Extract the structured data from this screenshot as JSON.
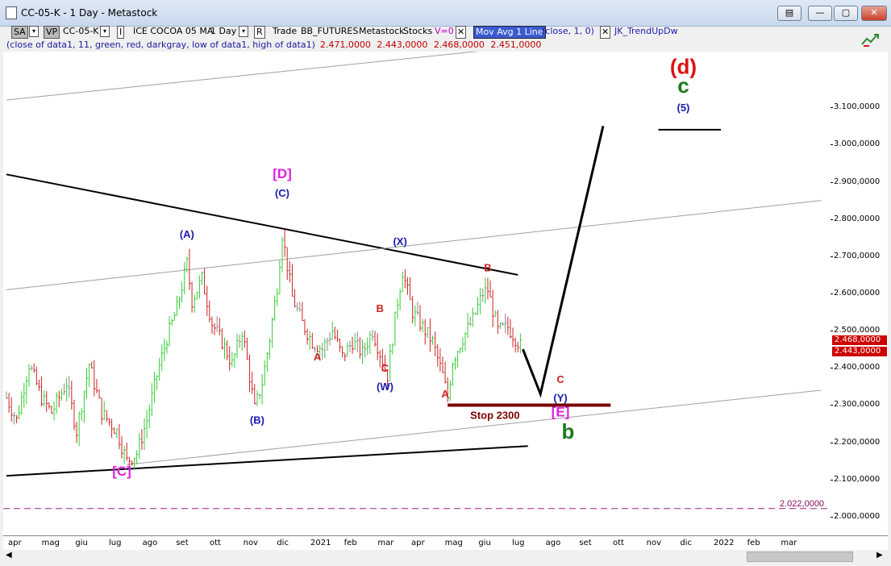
{
  "window": {
    "title": "CC-05-K - 1 Day - Metastock",
    "buttons": [
      "▤",
      "—",
      "▢",
      "✕"
    ]
  },
  "toolbar": {
    "sa": "SA",
    "vp": "VP",
    "symbol": "CC-05-K",
    "i_btn": "I",
    "desc": "ICE COCOA 05 MA",
    "interval": "1 Day",
    "r_btn": "R",
    "trade": "Trade",
    "source": "BB_FUTURES",
    "vendor": "Metastock",
    "stocks": "Stocks",
    "v0": "V=0",
    "x1": "✕",
    "ma": "Mov Avg 1 Line",
    "ma_params": "(close,  1,  0)",
    "x2": "✕",
    "trend": "JK_TrendUpDw"
  },
  "info": {
    "params": "(close of data1,  11,  green,  red,  darkgray,  low of data1,  high of data1)",
    "values": "2.471,0000 2.443,0000 2.468,0000 2.451,0000"
  },
  "chart_data": {
    "type": "candlestick",
    "title": "CC-05-K - 1 Day",
    "y_range": [
      1950,
      3250
    ],
    "y_ticks": [
      "3.100,0000",
      "3.000,0000",
      "2.900,0000",
      "2.800,0000",
      "2.700,0000",
      "2.600,0000",
      "2.500,0000",
      "2.400,0000",
      "2.300,0000",
      "2.200,0000",
      "2.100,0000",
      "2.000,0000"
    ],
    "x_ticks": [
      "apr",
      "mag",
      "giu",
      "lug",
      "ago",
      "set",
      "ott",
      "nov",
      "dic",
      "2021",
      "feb",
      "mar",
      "apr",
      "mag",
      "giu",
      "lug",
      "ago",
      "set",
      "ott",
      "nov",
      "dic",
      "2022",
      "feb",
      "mar"
    ],
    "last_prices": [
      "2.468,0000",
      "2.443,0000"
    ],
    "price_path": [
      [
        0,
        2320
      ],
      [
        4,
        2260
      ],
      [
        9,
        2410
      ],
      [
        14,
        2320
      ],
      [
        18,
        2280
      ],
      [
        24,
        2360
      ],
      [
        28,
        2230
      ],
      [
        33,
        2410
      ],
      [
        38,
        2280
      ],
      [
        44,
        2230
      ],
      [
        48,
        2150
      ],
      [
        52,
        2170
      ],
      [
        56,
        2260
      ],
      [
        60,
        2380
      ],
      [
        64,
        2480
      ],
      [
        68,
        2560
      ],
      [
        72,
        2680
      ],
      [
        74,
        2580
      ],
      [
        78,
        2640
      ],
      [
        82,
        2520
      ],
      [
        86,
        2470
      ],
      [
        90,
        2410
      ],
      [
        94,
        2500
      ],
      [
        96,
        2420
      ],
      [
        99,
        2290
      ],
      [
        102,
        2360
      ],
      [
        105,
        2480
      ],
      [
        108,
        2620
      ],
      [
        110,
        2760
      ],
      [
        114,
        2590
      ],
      [
        118,
        2520
      ],
      [
        122,
        2470
      ],
      [
        126,
        2450
      ],
      [
        130,
        2500
      ],
      [
        134,
        2430
      ],
      [
        138,
        2470
      ],
      [
        142,
        2440
      ],
      [
        146,
        2500
      ],
      [
        150,
        2420
      ],
      [
        152,
        2380
      ],
      [
        156,
        2580
      ],
      [
        158,
        2660
      ],
      [
        162,
        2550
      ],
      [
        166,
        2510
      ],
      [
        170,
        2470
      ],
      [
        174,
        2380
      ],
      [
        176,
        2320
      ],
      [
        178,
        2420
      ],
      [
        182,
        2480
      ],
      [
        186,
        2530
      ],
      [
        190,
        2600
      ],
      [
        192,
        2610
      ],
      [
        196,
        2500
      ],
      [
        200,
        2510
      ],
      [
        204,
        2470
      ],
      [
        206,
        2450
      ]
    ],
    "projection": [
      [
        206,
        2450
      ],
      [
        213,
        2330
      ],
      [
        238,
        3050
      ]
    ],
    "labels": [
      {
        "text": "[D]",
        "x": 110,
        "y": 2910,
        "color": "#e020e0"
      },
      {
        "text": "(C)",
        "x": 110,
        "y": 2860,
        "color": "#1a1ab0"
      },
      {
        "text": "(A)",
        "x": 72,
        "y": 2750,
        "color": "#1a1ab0"
      },
      {
        "text": "(X)",
        "x": 157,
        "y": 2730,
        "color": "#1a1ab0"
      },
      {
        "text": "B",
        "x": 192,
        "y": 2660,
        "color": "#cc2222"
      },
      {
        "text": "B",
        "x": 149,
        "y": 2550,
        "color": "#cc2222"
      },
      {
        "text": "A",
        "x": 124,
        "y": 2420,
        "color": "#cc2222"
      },
      {
        "text": "C",
        "x": 151,
        "y": 2390,
        "color": "#cc2222"
      },
      {
        "text": "(W)",
        "x": 151,
        "y": 2340,
        "color": "#1a1ab0"
      },
      {
        "text": "A",
        "x": 175,
        "y": 2320,
        "color": "#cc2222"
      },
      {
        "text": "(B)",
        "x": 100,
        "y": 2250,
        "color": "#1a1ab0"
      },
      {
        "text": "[C]",
        "x": 46,
        "y": 2110,
        "color": "#e020e0"
      },
      {
        "text": "C",
        "x": 221,
        "y": 2360,
        "color": "#cc2222"
      },
      {
        "text": "(Y)",
        "x": 221,
        "y": 2310,
        "color": "#1a1ab0"
      },
      {
        "text": "[E]",
        "x": 221,
        "y": 2270,
        "color": "#e020e0"
      },
      {
        "text": "b",
        "x": 224,
        "y": 2210,
        "color": "#1a7a1a"
      },
      {
        "text": "(d)",
        "x": 270,
        "y": 3190,
        "color": "#dd1111"
      },
      {
        "text": "c",
        "x": 270,
        "y": 3140,
        "color": "#1a7a1a"
      },
      {
        "text": "(5)",
        "x": 270,
        "y": 3090,
        "color": "#1a1ab0"
      }
    ],
    "annotations": {
      "stop_label": "Stop 2300",
      "stop_level": 2300,
      "support_level": 2022,
      "support_label": "2.022,0000"
    },
    "trendlines": [
      {
        "from": [
          0,
          2920
        ],
        "to": [
          204,
          2650
        ],
        "color": "#000000",
        "width": 2
      },
      {
        "from": [
          0,
          2110
        ],
        "to": [
          208,
          2190
        ],
        "color": "#000000",
        "width": 2
      },
      {
        "from": [
          0,
          2610
        ],
        "to": [
          325,
          2850
        ],
        "color": "#a0a0a0",
        "width": 1
      },
      {
        "from": [
          48,
          2140
        ],
        "to": [
          325,
          2340
        ],
        "color": "#a0a0a0",
        "width": 1
      },
      {
        "from": [
          0,
          3120
        ],
        "to": [
          230,
          3280
        ],
        "color": "#a0a0a0",
        "width": 1
      },
      {
        "from": [
          260,
          3040
        ],
        "to": [
          285,
          3040
        ],
        "color": "#000000",
        "width": 2
      }
    ],
    "x_count": 330
  }
}
